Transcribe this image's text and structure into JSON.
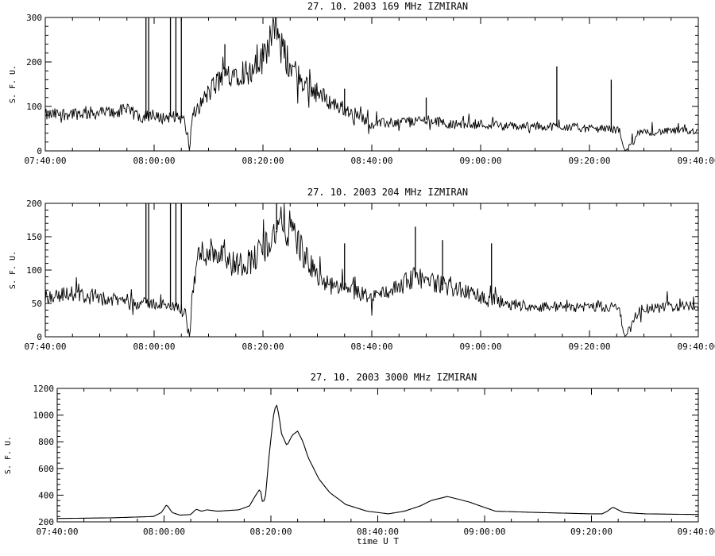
{
  "chart_data": [
    {
      "type": "line",
      "title": "27.  10.  2003    169 MHz    IZMIRAN",
      "ylabel": "S. F. U.",
      "xlabel": "",
      "xlim": [
        "07:40:00",
        "09:40:00"
      ],
      "ylim": [
        0,
        300
      ],
      "x_ticks": [
        "07:40:00",
        "08:00:00",
        "08:20:00",
        "08:40:00",
        "09:00:00",
        "09:20:00",
        "09:40:00"
      ],
      "y_ticks": [
        0,
        100,
        200,
        300
      ],
      "series": [
        {
          "x": [
            "07:40:00",
            "07:45:00",
            "07:50:00",
            "07:55:00",
            "07:58:00",
            "08:00:00",
            "08:02:00",
            "08:04:00",
            "08:05:30",
            "08:06:30",
            "08:07:00",
            "08:10:00",
            "08:12:00",
            "08:14:00",
            "08:16:00",
            "08:18:00",
            "08:20:00",
            "08:21:00",
            "08:22:00",
            "08:23:00",
            "08:25:00",
            "08:27:00",
            "08:30:00",
            "08:33:00",
            "08:36:00",
            "08:40:00",
            "08:45:00",
            "08:50:00",
            "08:55:00",
            "09:00:00",
            "09:05:00",
            "09:10:00",
            "09:15:00",
            "09:20:00",
            "09:24:00",
            "09:25:30",
            "09:26:30",
            "09:27:30",
            "09:29:00",
            "09:35:00",
            "09:40:00"
          ],
          "values": [
            80,
            85,
            85,
            90,
            75,
            75,
            75,
            80,
            70,
            0,
            80,
            130,
            160,
            175,
            180,
            175,
            210,
            250,
            280,
            240,
            190,
            160,
            130,
            105,
            90,
            60,
            65,
            70,
            60,
            60,
            55,
            55,
            55,
            50,
            50,
            45,
            0,
            10,
            40,
            45,
            45
          ],
          "spikes": [
            {
              "x": "07:58:30",
              "y": 300
            },
            {
              "x": "07:59:00",
              "y": 300
            },
            {
              "x": "08:03:00",
              "y": 300
            },
            {
              "x": "08:04:00",
              "y": 300
            },
            {
              "x": "08:05:00",
              "y": 300
            },
            {
              "x": "08:13:00",
              "y": 240
            },
            {
              "x": "09:14:00",
              "y": 190
            },
            {
              "x": "09:24:00",
              "y": 160
            },
            {
              "x": "08:35:00",
              "y": 140
            },
            {
              "x": "08:50:00",
              "y": 120
            }
          ]
        }
      ]
    },
    {
      "type": "line",
      "title": "27.  10.  2003    204 MHz    IZMIRAN",
      "ylabel": "S. F. U.",
      "xlabel": "",
      "xlim": [
        "07:40:00",
        "09:40:00"
      ],
      "ylim": [
        0,
        200
      ],
      "x_ticks": [
        "07:40:00",
        "08:00:00",
        "08:20:00",
        "08:40:00",
        "09:00:00",
        "09:20:00",
        "09:40:00"
      ],
      "y_ticks": [
        0,
        50,
        100,
        150,
        200
      ],
      "series": [
        {
          "x": [
            "07:40:00",
            "07:45:00",
            "07:50:00",
            "07:55:00",
            "07:58:00",
            "08:00:00",
            "08:02:00",
            "08:04:00",
            "08:05:30",
            "08:06:30",
            "08:07:00",
            "08:08:00",
            "08:10:00",
            "08:12:00",
            "08:14:00",
            "08:16:00",
            "08:18:00",
            "08:20:00",
            "08:22:00",
            "08:23:00",
            "08:24:00",
            "08:26:00",
            "08:28:00",
            "08:31:00",
            "08:35:00",
            "08:40:00",
            "08:45:00",
            "08:48:00",
            "08:52:00",
            "08:56:00",
            "09:00:00",
            "09:05:00",
            "09:10:00",
            "09:15:00",
            "09:20:00",
            "09:24:00",
            "09:25:30",
            "09:26:30",
            "09:27:30",
            "09:29:00",
            "09:35:00",
            "09:40:00"
          ],
          "values": [
            60,
            65,
            55,
            55,
            50,
            50,
            45,
            45,
            40,
            0,
            60,
            120,
            130,
            125,
            110,
            110,
            115,
            130,
            155,
            165,
            170,
            150,
            115,
            80,
            70,
            60,
            75,
            90,
            80,
            70,
            60,
            50,
            45,
            45,
            45,
            45,
            40,
            0,
            10,
            40,
            45,
            45
          ],
          "spikes": [
            {
              "x": "07:58:30",
              "y": 200
            },
            {
              "x": "07:59:00",
              "y": 200
            },
            {
              "x": "08:03:00",
              "y": 200
            },
            {
              "x": "08:04:00",
              "y": 200
            },
            {
              "x": "08:05:00",
              "y": 200
            },
            {
              "x": "08:22:30",
              "y": 200
            },
            {
              "x": "08:48:00",
              "y": 165
            },
            {
              "x": "08:53:00",
              "y": 145
            },
            {
              "x": "09:02:00",
              "y": 140
            },
            {
              "x": "08:35:00",
              "y": 140
            }
          ]
        }
      ]
    },
    {
      "type": "line",
      "title": "27.  10.  2003    3000 MHz    IZMIRAN",
      "ylabel": "S. F. U.",
      "xlabel": "time  U T",
      "xlim": [
        "07:40:00",
        "09:40:00"
      ],
      "ylim": [
        200,
        1200
      ],
      "x_ticks": [
        "07:40:00",
        "08:00:00",
        "08:20:00",
        "08:40:00",
        "09:00:00",
        "09:20:00",
        "09:40:00"
      ],
      "y_ticks": [
        200,
        400,
        600,
        800,
        1000,
        1200
      ],
      "series": [
        {
          "x": [
            "07:40:00",
            "07:50:00",
            "07:58:00",
            "07:59:30",
            "08:00:30",
            "08:01:30",
            "08:03:00",
            "08:05:00",
            "08:06:00",
            "08:07:00",
            "08:08:00",
            "08:10:00",
            "08:14:00",
            "08:16:00",
            "08:17:00",
            "08:18:00",
            "08:18:30",
            "08:19:00",
            "08:19:40",
            "08:20:30",
            "08:21:00",
            "08:21:30",
            "08:22:00",
            "08:23:00",
            "08:24:00",
            "08:25:00",
            "08:26:00",
            "08:27:00",
            "08:29:00",
            "08:31:00",
            "08:34:00",
            "08:38:00",
            "08:42:00",
            "08:45:00",
            "08:48:00",
            "08:50:00",
            "08:53:00",
            "08:57:00",
            "09:02:00",
            "09:10:00",
            "09:20:00",
            "09:22:00",
            "09:23:00",
            "09:24:00",
            "09:26:00",
            "09:30:00",
            "09:40:00"
          ],
          "values": [
            225,
            230,
            240,
            270,
            330,
            270,
            250,
            255,
            295,
            280,
            290,
            280,
            290,
            320,
            390,
            450,
            330,
            400,
            700,
            1000,
            1090,
            1000,
            860,
            770,
            850,
            880,
            800,
            680,
            520,
            420,
            330,
            280,
            260,
            280,
            320,
            360,
            390,
            350,
            280,
            270,
            260,
            260,
            280,
            310,
            270,
            260,
            255
          ]
        }
      ]
    }
  ]
}
